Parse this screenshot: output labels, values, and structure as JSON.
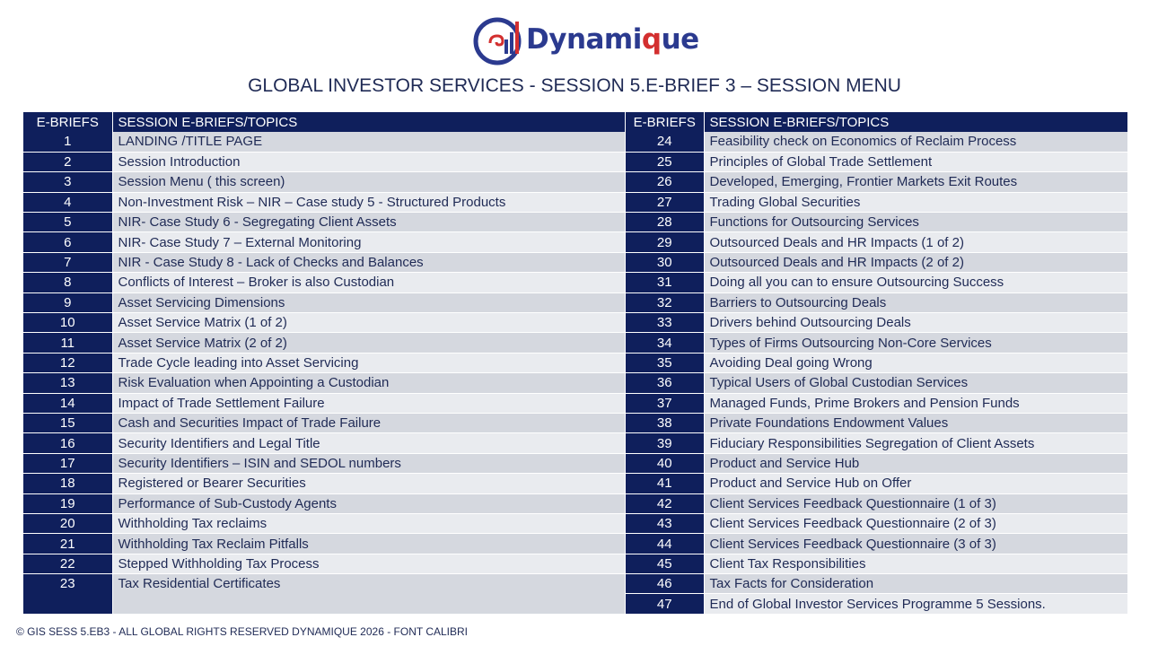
{
  "brand": {
    "name_part1": "Dynami",
    "name_q": "q",
    "name_part2": "ue"
  },
  "colors": {
    "navy": "#0f1f5c",
    "row_a": "#d5d8df",
    "row_b": "#e9ebef",
    "accent": "#d32f2f",
    "brand_blue": "#2b3a8f"
  },
  "title": "GLOBAL INVESTOR SERVICES - SESSION 5.E-BRIEF 3 – SESSION MENU",
  "headers": {
    "num": "E-BRIEFS",
    "topic": "SESSION E-BRIEFS/TOPICS"
  },
  "left_rows": [
    {
      "n": "1",
      "t": "LANDING /TITLE PAGE"
    },
    {
      "n": "2",
      "t": "Session Introduction"
    },
    {
      "n": "3",
      "t": "Session Menu ( this screen)"
    },
    {
      "n": "4",
      "t": "Non-Investment Risk – NIR – Case study 5 - Structured Products"
    },
    {
      "n": "5",
      "t": "NIR- Case Study 6  - Segregating Client Assets"
    },
    {
      "n": "6",
      "t": "NIR- Case Study 7 – External Monitoring"
    },
    {
      "n": "7",
      "t": "NIR - Case Study 8 - Lack of Checks and Balances"
    },
    {
      "n": "8",
      "t": "Conflicts of Interest – Broker is also Custodian"
    },
    {
      "n": "9",
      "t": "Asset Servicing Dimensions"
    },
    {
      "n": "10",
      "t": "Asset Service Matrix (1 of 2)"
    },
    {
      "n": "11",
      "t": "Asset Service Matrix (2 of 2)"
    },
    {
      "n": "12",
      "t": "Trade Cycle leading into Asset Servicing"
    },
    {
      "n": "13",
      "t": "Risk Evaluation when Appointing a Custodian"
    },
    {
      "n": "14",
      "t": "Impact of Trade Settlement Failure"
    },
    {
      "n": "15",
      "t": "Cash and Securities Impact of Trade Failure"
    },
    {
      "n": "16",
      "t": "Security Identifiers and Legal Title"
    },
    {
      "n": "17",
      "t": "Security Identifiers – ISIN and SEDOL numbers"
    },
    {
      "n": "18",
      "t": "Registered or Bearer Securities"
    },
    {
      "n": "19",
      "t": "Performance of Sub-Custody Agents"
    },
    {
      "n": "20",
      "t": "Withholding Tax reclaims"
    },
    {
      "n": "21",
      "t": "Withholding Tax Reclaim Pitfalls"
    },
    {
      "n": "22",
      "t": "Stepped Withholding Tax Process"
    },
    {
      "n": "23",
      "t": "Tax Residential Certificates"
    }
  ],
  "right_rows": [
    {
      "n": "24",
      "t": "Feasibility check on Economics of Reclaim Process"
    },
    {
      "n": "25",
      "t": "Principles of Global Trade Settlement"
    },
    {
      "n": "26",
      "t": "Developed, Emerging, Frontier Markets Exit Routes"
    },
    {
      "n": "27",
      "t": "Trading Global Securities"
    },
    {
      "n": "28",
      "t": "Functions for Outsourcing Services"
    },
    {
      "n": "29",
      "t": "Outsourced Deals and HR Impacts (1 of 2)"
    },
    {
      "n": "30",
      "t": "Outsourced Deals and HR Impacts (2 of 2)"
    },
    {
      "n": "31",
      "t": "Doing all you can to ensure Outsourcing Success"
    },
    {
      "n": "32",
      "t": "Barriers to Outsourcing Deals"
    },
    {
      "n": "33",
      "t": "Drivers behind Outsourcing Deals"
    },
    {
      "n": "34",
      "t": "Types of Firms Outsourcing Non-Core Services"
    },
    {
      "n": "35",
      "t": "Avoiding Deal going Wrong"
    },
    {
      "n": "36",
      "t": "Typical Users of Global Custodian Services"
    },
    {
      "n": "37",
      "t": "Managed Funds, Prime Brokers and Pension Funds"
    },
    {
      "n": "38",
      "t": "Private Foundations Endowment Values"
    },
    {
      "n": "39",
      "t": "Fiduciary Responsibilities Segregation of Client Assets"
    },
    {
      "n": "40",
      "t": "Product and Service Hub"
    },
    {
      "n": "41",
      "t": "Product and Service Hub on Offer"
    },
    {
      "n": "42",
      "t": "Client Services Feedback Questionnaire (1 of 3)"
    },
    {
      "n": "43",
      "t": "Client Services Feedback Questionnaire (2 of 3)"
    },
    {
      "n": "44",
      "t": "Client Services Feedback Questionnaire (3 of 3)"
    },
    {
      "n": "45",
      "t": "Client Tax Responsibilities"
    },
    {
      "n": "46",
      "t": "Tax Facts for Consideration"
    },
    {
      "n": "47",
      "t": "End of Global Investor Services Programme 5 Sessions."
    }
  ],
  "footer": "© GIS SESS 5.EB3 - ALL GLOBAL RIGHTS RESERVED DYNAMIQUE 2026  - FONT CALIBRI"
}
